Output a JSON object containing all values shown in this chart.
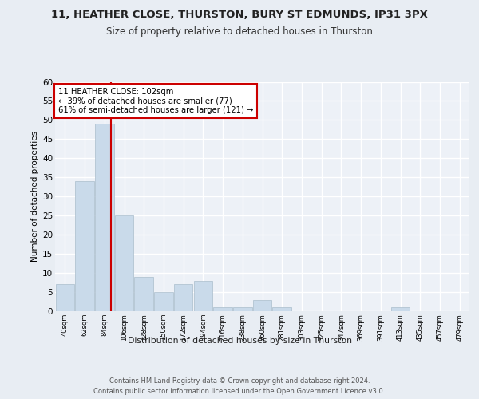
{
  "title1": "11, HEATHER CLOSE, THURSTON, BURY ST EDMUNDS, IP31 3PX",
  "title2": "Size of property relative to detached houses in Thurston",
  "xlabel": "Distribution of detached houses by size in Thurston",
  "ylabel": "Number of detached properties",
  "footer1": "Contains HM Land Registry data © Crown copyright and database right 2024.",
  "footer2": "Contains public sector information licensed under the Open Government Licence v3.0.",
  "bin_labels": [
    "40sqm",
    "62sqm",
    "84sqm",
    "106sqm",
    "128sqm",
    "150sqm",
    "172sqm",
    "194sqm",
    "216sqm",
    "238sqm",
    "260sqm",
    "281sqm",
    "303sqm",
    "325sqm",
    "347sqm",
    "369sqm",
    "391sqm",
    "413sqm",
    "435sqm",
    "457sqm",
    "479sqm"
  ],
  "bar_heights": [
    7,
    34,
    49,
    25,
    9,
    5,
    7,
    8,
    1,
    1,
    3,
    1,
    0,
    0,
    0,
    0,
    0,
    1,
    0,
    0,
    0
  ],
  "bar_color": "#c9daea",
  "bar_edge_color": "#aabdcc",
  "vline_bin_index": 2,
  "vline_color": "#cc0000",
  "annotation_line1": "11 HEATHER CLOSE: 102sqm",
  "annotation_line2": "← 39% of detached houses are smaller (77)",
  "annotation_line3": "61% of semi-detached houses are larger (121) →",
  "annotation_box_color": "#ffffff",
  "annotation_border_color": "#cc0000",
  "ylim": [
    0,
    60
  ],
  "yticks": [
    0,
    5,
    10,
    15,
    20,
    25,
    30,
    35,
    40,
    45,
    50,
    55,
    60
  ],
  "background_color": "#e8edf3",
  "plot_bg_color": "#edf1f7",
  "grid_color": "#ffffff",
  "title1_fontsize": 9.5,
  "title2_fontsize": 8.5
}
